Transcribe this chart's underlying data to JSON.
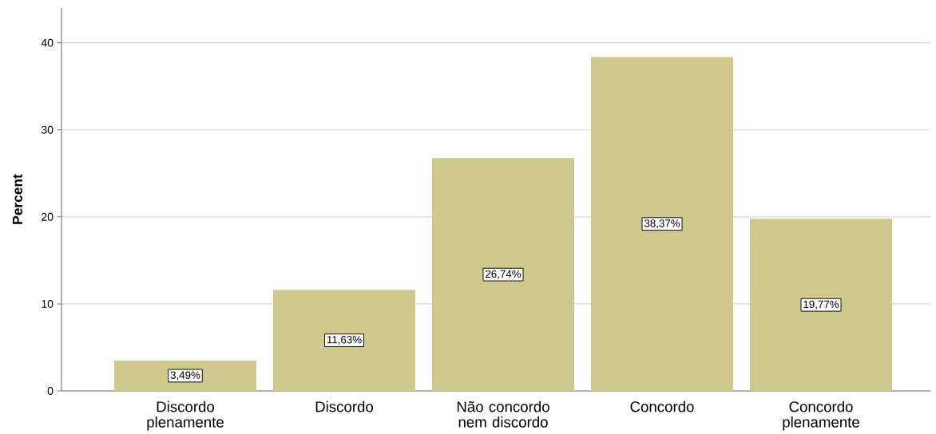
{
  "chart_data": {
    "type": "bar",
    "categories": [
      "Discordo plenamente",
      "Discordo",
      "Não concordo nem discordo",
      "Concordo",
      "Concordo plenamente"
    ],
    "values": [
      3.49,
      11.63,
      26.74,
      38.37,
      19.77
    ],
    "value_labels": [
      "3,49%",
      "11,63%",
      "26,74%",
      "38,37%",
      "19,77%"
    ],
    "color": "#cfc98e",
    "ylabel": "Percent",
    "ylim": [
      0,
      44
    ],
    "yticks": [
      0,
      10,
      20,
      30,
      40
    ],
    "grid": "y"
  }
}
